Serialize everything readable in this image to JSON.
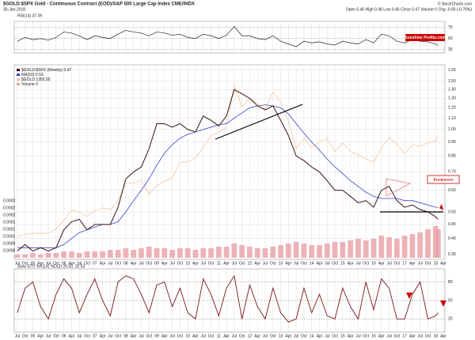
{
  "chart_data": {
    "type": "line",
    "title": "$GOLD:$SPX Gold - Continuous Contract (EOD)/S&P 500 Large Cap Index  CME/INDX",
    "subtitle": "26-Jan-2018",
    "copyright": "© StockCharts.com",
    "header_stats": "Open 0.46  High 0.48  Low 0.46  Close 0.47  Volume 0  Chg -0.00 (-0.76%)",
    "watermark": "Sunshine Profits.com",
    "annotation": "Breakdown",
    "log_scale": true,
    "grid": true,
    "x": [
      2004.5,
      2004.75,
      2005,
      2005.25,
      2005.5,
      2005.75,
      2006,
      2006.25,
      2006.5,
      2006.75,
      2007,
      2007.25,
      2007.5,
      2007.75,
      2008,
      2008.25,
      2008.5,
      2008.75,
      2009,
      2009.25,
      2009.5,
      2009.75,
      2010,
      2010.25,
      2010.5,
      2010.75,
      2011,
      2011.25,
      2011.5,
      2011.75,
      2012,
      2012.25,
      2012.5,
      2012.75,
      2013,
      2013.25,
      2013.5,
      2013.75,
      2014,
      2014.25,
      2014.5,
      2014.75,
      2015,
      2015.25,
      2015.5,
      2015.75,
      2016,
      2016.25,
      2016.5,
      2016.75,
      2017,
      2017.25,
      2017.5,
      2017.75,
      2018,
      2018.08
    ],
    "xlim": [
      2004.4,
      2018.3
    ],
    "xticks": [
      {
        "value": 2004.5,
        "label": "Jul"
      },
      {
        "value": 2004.75,
        "label": "Oct"
      },
      {
        "value": 2005,
        "label": "05"
      },
      {
        "value": 2005.25,
        "label": "Apr"
      },
      {
        "value": 2005.5,
        "label": "Jul"
      },
      {
        "value": 2005.75,
        "label": "Oct"
      },
      {
        "value": 2006,
        "label": "06"
      },
      {
        "value": 2006.25,
        "label": "Apr"
      },
      {
        "value": 2006.5,
        "label": "Jul"
      },
      {
        "value": 2006.75,
        "label": "Oct"
      },
      {
        "value": 2007,
        "label": "07"
      },
      {
        "value": 2007.25,
        "label": "Apr"
      },
      {
        "value": 2007.5,
        "label": "Jul"
      },
      {
        "value": 2007.75,
        "label": "Oct"
      },
      {
        "value": 2008,
        "label": "08"
      },
      {
        "value": 2008.25,
        "label": "Apr"
      },
      {
        "value": 2008.5,
        "label": "Jul"
      },
      {
        "value": 2008.75,
        "label": "Oct"
      },
      {
        "value": 2009,
        "label": "09"
      },
      {
        "value": 2009.25,
        "label": "Apr"
      },
      {
        "value": 2009.5,
        "label": "Jul"
      },
      {
        "value": 2009.75,
        "label": "Oct"
      },
      {
        "value": 2010,
        "label": "10"
      },
      {
        "value": 2010.25,
        "label": "Apr"
      },
      {
        "value": 2010.5,
        "label": "Jul"
      },
      {
        "value": 2010.75,
        "label": "Oct"
      },
      {
        "value": 2011,
        "label": "11"
      },
      {
        "value": 2011.25,
        "label": "Apr"
      },
      {
        "value": 2011.5,
        "label": "Jul"
      },
      {
        "value": 2011.75,
        "label": "Oct"
      },
      {
        "value": 2012,
        "label": "12"
      },
      {
        "value": 2012.25,
        "label": "Apr"
      },
      {
        "value": 2012.5,
        "label": "Jul"
      },
      {
        "value": 2012.75,
        "label": "Oct"
      },
      {
        "value": 2013,
        "label": "13"
      },
      {
        "value": 2013.25,
        "label": "Apr"
      },
      {
        "value": 2013.5,
        "label": "Jul"
      },
      {
        "value": 2013.75,
        "label": "Oct"
      },
      {
        "value": 2014,
        "label": "14"
      },
      {
        "value": 2014.25,
        "label": "Apr"
      },
      {
        "value": 2014.5,
        "label": "Jul"
      },
      {
        "value": 2014.75,
        "label": "Oct"
      },
      {
        "value": 2015,
        "label": "15"
      },
      {
        "value": 2015.25,
        "label": "Apr"
      },
      {
        "value": 2015.5,
        "label": "Jul"
      },
      {
        "value": 2015.75,
        "label": "Oct"
      },
      {
        "value": 2016,
        "label": "16"
      },
      {
        "value": 2016.25,
        "label": "Apr"
      },
      {
        "value": 2016.5,
        "label": "Jul"
      },
      {
        "value": 2016.75,
        "label": "Oct"
      },
      {
        "value": 2017,
        "label": "17"
      },
      {
        "value": 2017.25,
        "label": "Apr"
      },
      {
        "value": 2017.5,
        "label": "Jul"
      },
      {
        "value": 2017.75,
        "label": "Oct"
      },
      {
        "value": 2018,
        "label": "18"
      },
      {
        "value": 2018.25,
        "label": "Apr"
      }
    ],
    "ylim": [
      0.34,
      1.7
    ],
    "yticks": [
      1.65,
      {
        "value": 1.5,
        "label": "1.50"
      },
      {
        "value": 1.4,
        "label": "1.40"
      },
      {
        "value": 1.3,
        "label": "1.30"
      },
      {
        "value": 1.2,
        "label": "1.20"
      },
      {
        "value": 1.1,
        "label": "1.10"
      },
      {
        "value": 1,
        "label": "1.00"
      },
      {
        "value": 0.9,
        "label": "0.90"
      },
      {
        "value": 0.8,
        "label": "0.80"
      },
      {
        "value": 0.7,
        "label": "0.70"
      },
      {
        "value": 0.6,
        "label": "0.60"
      },
      {
        "value": 0.5,
        "label": "0.50"
      },
      0.45,
      {
        "value": 0.4,
        "label": "0.40"
      },
      0.35
    ],
    "y2lim": [
      200,
      2000
    ],
    "series": [
      {
        "name": "$GOLD:$SPX (Weekly) 0.47",
        "color": "#3a1010",
        "values": [
          0.36,
          0.38,
          0.36,
          0.37,
          0.36,
          0.37,
          0.43,
          0.46,
          0.47,
          0.43,
          0.45,
          0.45,
          0.45,
          0.52,
          0.66,
          0.7,
          0.73,
          0.85,
          1.05,
          1.05,
          1.02,
          1.05,
          1.0,
          0.98,
          1.12,
          1.08,
          1.03,
          1.12,
          1.4,
          1.35,
          1.3,
          1.22,
          1.18,
          1.22,
          1.08,
          0.95,
          0.8,
          0.77,
          0.73,
          0.7,
          0.65,
          0.6,
          0.6,
          0.57,
          0.54,
          0.55,
          0.52,
          0.6,
          0.62,
          0.55,
          0.52,
          0.53,
          0.51,
          0.5,
          0.48,
          0.47
        ]
      },
      {
        "name": "MA(50) 0.53",
        "color": "#3344cc",
        "values": [
          0.37,
          0.37,
          0.37,
          0.37,
          0.37,
          0.37,
          0.38,
          0.4,
          0.42,
          0.43,
          0.44,
          0.45,
          0.45,
          0.46,
          0.5,
          0.55,
          0.6,
          0.66,
          0.74,
          0.82,
          0.88,
          0.93,
          0.96,
          0.98,
          1.0,
          1.02,
          1.04,
          1.05,
          1.1,
          1.15,
          1.2,
          1.22,
          1.23,
          1.22,
          1.2,
          1.14,
          1.05,
          0.97,
          0.9,
          0.84,
          0.78,
          0.73,
          0.69,
          0.65,
          0.62,
          0.59,
          0.57,
          0.56,
          0.56,
          0.56,
          0.55,
          0.55,
          0.54,
          0.53,
          0.52,
          0.52
        ]
      },
      {
        "name": "$GOLD 1350.00",
        "color": "#f5c6a5",
        "axis": "y2",
        "values": [
          400,
          420,
          430,
          430,
          430,
          470,
          550,
          650,
          630,
          590,
          640,
          670,
          650,
          740,
          900,
          900,
          930,
          800,
          880,
          920,
          950,
          1100,
          1100,
          1140,
          1240,
          1350,
          1380,
          1430,
          1820,
          1620,
          1700,
          1650,
          1600,
          1760,
          1660,
          1480,
          1230,
          1320,
          1240,
          1290,
          1320,
          1200,
          1280,
          1200,
          1170,
          1130,
          1100,
          1230,
          1330,
          1270,
          1180,
          1260,
          1250,
          1280,
          1300,
          1350
        ]
      }
    ],
    "volume": {
      "label": "Volume 0",
      "color": "#e8a0a8",
      "ylim": [
        0,
        0.0003
      ],
      "axis_labels": [
        "0.0002",
        "0.0002",
        "0.0002",
        "0.0001",
        "0.0001",
        "0.0001",
        "0.0000",
        "0.0000"
      ],
      "values": [
        2e-05,
        2e-05,
        3e-05,
        2e-05,
        3e-05,
        3e-05,
        4e-05,
        4e-05,
        3e-05,
        4e-05,
        4e-05,
        4e-05,
        5e-05,
        5e-05,
        6e-05,
        5e-05,
        6e-05,
        7e-05,
        6e-05,
        6e-05,
        5e-05,
        6e-05,
        6e-05,
        5e-05,
        6e-05,
        6e-05,
        7e-05,
        7e-05,
        9e-05,
        8e-05,
        7e-05,
        6e-05,
        6e-05,
        7e-05,
        8e-05,
        9e-05,
        0.0001,
        9e-05,
        8e-05,
        8e-05,
        9e-05,
        0.0001,
        0.0001,
        0.00011,
        0.00012,
        0.00011,
        0.00012,
        0.00014,
        0.00013,
        0.00012,
        0.00014,
        0.00015,
        0.00016,
        0.00018,
        0.0002,
        0.00018
      ]
    },
    "rsi": {
      "label": "RSI(14) 37.09",
      "color": "#222222",
      "ylim": [
        25,
        80
      ],
      "yticks": [
        70,
        50,
        30
      ],
      "values": [
        45,
        52,
        48,
        50,
        47,
        52,
        62,
        60,
        55,
        48,
        55,
        52,
        50,
        58,
        65,
        62,
        60,
        55,
        62,
        60,
        56,
        58,
        52,
        50,
        58,
        55,
        50,
        56,
        72,
        55,
        55,
        50,
        48,
        55,
        45,
        40,
        35,
        45,
        42,
        44,
        40,
        38,
        45,
        42,
        40,
        48,
        42,
        58,
        55,
        45,
        42,
        48,
        45,
        44,
        40,
        37
      ]
    },
    "stoch": {
      "label": "Slow STO %K(14) %D(3) 26.50, 32.53",
      "color": "#7a1515",
      "ylim": [
        0,
        100
      ],
      "yticks": [
        80,
        50,
        20
      ],
      "values": [
        30,
        70,
        80,
        40,
        20,
        60,
        85,
        70,
        30,
        60,
        85,
        50,
        25,
        80,
        90,
        85,
        60,
        30,
        75,
        80,
        40,
        70,
        30,
        20,
        85,
        60,
        25,
        70,
        90,
        20,
        75,
        40,
        20,
        70,
        30,
        15,
        20,
        70,
        30,
        60,
        25,
        20,
        70,
        40,
        20,
        80,
        35,
        85,
        70,
        20,
        20,
        60,
        80,
        20,
        25,
        30
      ]
    }
  }
}
